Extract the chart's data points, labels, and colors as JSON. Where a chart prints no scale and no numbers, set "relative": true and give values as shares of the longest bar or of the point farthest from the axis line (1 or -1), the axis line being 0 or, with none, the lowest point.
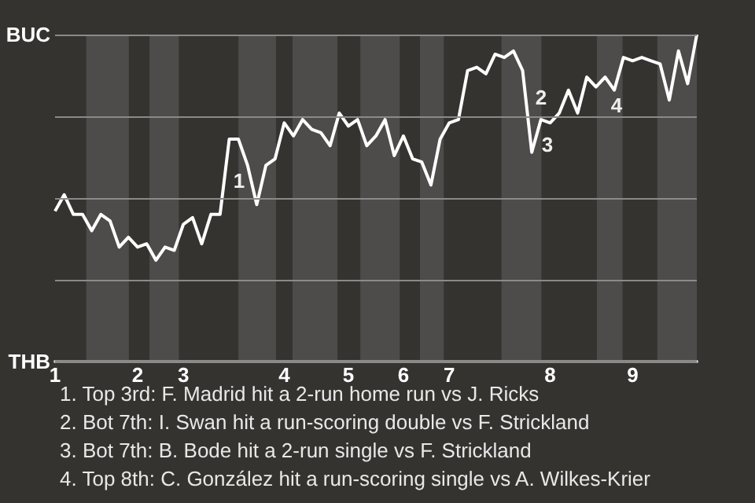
{
  "chart_data": {
    "type": "line",
    "categories": [
      "1",
      null,
      null,
      null,
      null,
      null,
      null,
      null,
      null,
      "2",
      null,
      null,
      null,
      null,
      "3",
      null,
      null,
      null,
      null,
      null,
      null,
      null,
      null,
      null,
      null,
      "4",
      null,
      null,
      null,
      null,
      null,
      null,
      "5",
      null,
      null,
      null,
      null,
      null,
      "6",
      null,
      null,
      null,
      null,
      "7",
      null,
      null,
      null,
      null,
      null,
      null,
      null,
      null,
      null,
      null,
      "8",
      null,
      null,
      null,
      null,
      null,
      null,
      null,
      null,
      "9",
      null,
      null,
      null,
      null,
      null,
      null,
      null
    ],
    "series": [
      {
        "color": "#ffffff",
        "values": [
          0.46,
          0.51,
          0.45,
          0.45,
          0.4,
          0.45,
          0.43,
          0.35,
          0.38,
          0.35,
          0.36,
          0.31,
          0.35,
          0.34,
          0.42,
          0.44,
          0.36,
          0.45,
          0.45,
          0.68,
          0.68,
          0.6,
          0.48,
          0.6,
          0.62,
          0.73,
          0.69,
          0.74,
          0.71,
          0.7,
          0.66,
          0.76,
          0.72,
          0.74,
          0.66,
          0.69,
          0.74,
          0.63,
          0.69,
          0.62,
          0.61,
          0.54,
          0.68,
          0.73,
          0.74,
          0.89,
          0.9,
          0.88,
          0.94,
          0.93,
          0.95,
          0.89,
          0.64,
          0.74,
          0.73,
          0.76,
          0.83,
          0.76,
          0.87,
          0.84,
          0.87,
          0.83,
          0.93,
          0.92,
          0.93,
          0.92,
          0.91,
          0.8,
          0.95,
          0.85,
          1.0
        ]
      }
    ],
    "relative": true,
    "marker": "none",
    "ref_lines": [
      {
        "axis": "y",
        "value": 1,
        "label": "BUC"
      },
      {
        "axis": "y",
        "value": 0.75,
        "label": null
      },
      {
        "axis": "y",
        "value": 0.5,
        "label": null
      },
      {
        "axis": "y",
        "value": 0.25,
        "label": null
      },
      {
        "axis": "y",
        "value": 0,
        "label": "THB"
      }
    ],
    "annotations": [
      "1",
      "2",
      "3",
      "4",
      "1. Top 3rd: F. Madrid hit a 2-run home run vs J. Ricks",
      "2. Bot 7th: I. Swan hit a run-scoring double vs F. Strickland",
      "3. Bot 7th: B. Bode hit a 2-run single vs F. Strickland",
      "4. Top 8th: C. González hit a run-scoring single vs A. Wilkes-Krier"
    ]
  }
}
